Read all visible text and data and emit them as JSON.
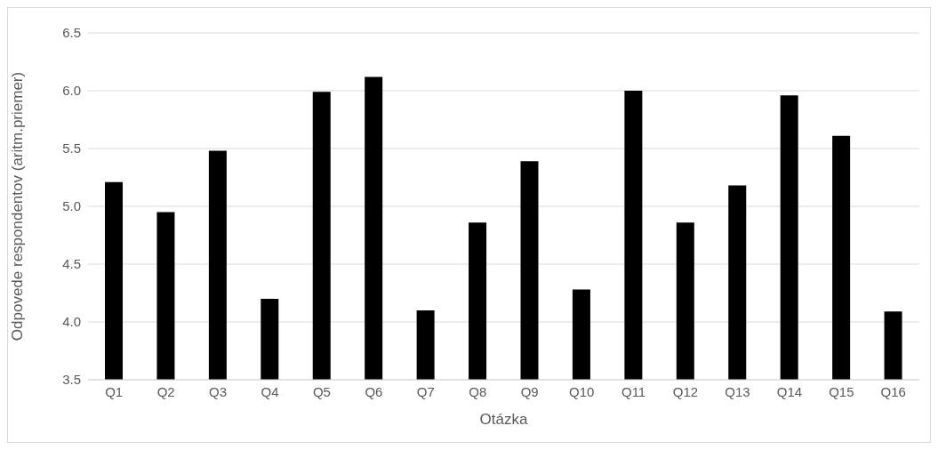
{
  "chart_data": {
    "type": "bar",
    "xlabel": "Otázka",
    "ylabel": "Odpovede respondentov (aritm.priemer)",
    "categories": [
      "Q1",
      "Q2",
      "Q3",
      "Q4",
      "Q5",
      "Q6",
      "Q7",
      "Q8",
      "Q9",
      "Q10",
      "Q11",
      "Q12",
      "Q13",
      "Q14",
      "Q15",
      "Q16"
    ],
    "values": [
      5.21,
      4.95,
      5.48,
      4.2,
      5.99,
      6.12,
      4.1,
      4.86,
      5.39,
      4.28,
      6.0,
      4.86,
      5.18,
      5.96,
      5.61,
      4.09
    ],
    "color": "#000000",
    "ylim": [
      3.5,
      6.5
    ],
    "yticks": [
      3.5,
      {
        "value": 4,
        "label": "4.0"
      },
      4.5,
      {
        "value": 5,
        "label": "5.0"
      },
      5.5,
      {
        "value": 6,
        "label": "6.0"
      },
      6.5
    ],
    "grid": "y"
  }
}
